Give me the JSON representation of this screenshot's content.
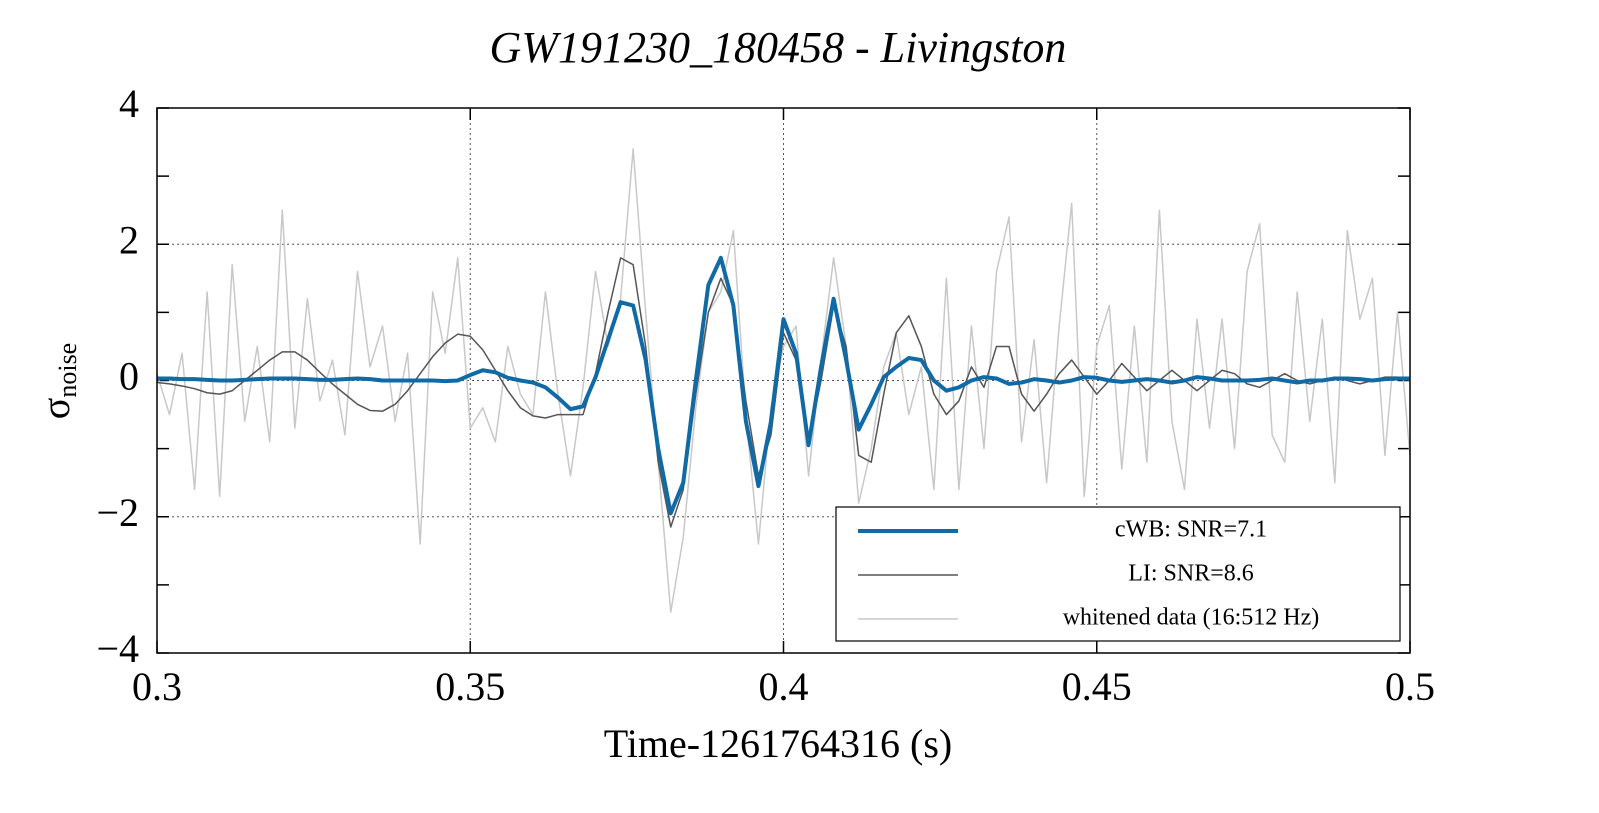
{
  "chart_data": {
    "type": "line",
    "title": "GW191230_180458 - Livingston",
    "xlabel": "Time-1261764316 (s)",
    "ylabel": "σ",
    "ylabel_subscript": "noise",
    "xlim": [
      0.3,
      0.5
    ],
    "xticks": [
      0.3,
      0.35,
      0.4,
      0.45,
      0.5
    ],
    "ylim": [
      -4,
      4
    ],
    "yticks": [
      {
        "value": -4,
        "label": "−4"
      },
      {
        "value": -2,
        "label": "−2"
      },
      0,
      2,
      4
    ],
    "yminorticks": [
      -3,
      -1,
      1,
      3
    ],
    "grid": true,
    "legend": "lower right",
    "x": [
      0.3,
      0.302,
      0.304,
      0.306,
      0.308,
      0.31,
      0.312,
      0.314,
      0.316,
      0.318,
      0.32,
      0.322,
      0.324,
      0.326,
      0.328,
      0.33,
      0.332,
      0.334,
      0.336,
      0.338,
      0.34,
      0.342,
      0.344,
      0.346,
      0.348,
      0.35,
      0.352,
      0.354,
      0.356,
      0.358,
      0.36,
      0.362,
      0.364,
      0.366,
      0.368,
      0.37,
      0.372,
      0.374,
      0.376,
      0.378,
      0.38,
      0.382,
      0.384,
      0.386,
      0.388,
      0.39,
      0.392,
      0.394,
      0.396,
      0.398,
      0.4,
      0.402,
      0.404,
      0.406,
      0.408,
      0.41,
      0.412,
      0.414,
      0.416,
      0.418,
      0.42,
      0.422,
      0.424,
      0.426,
      0.428,
      0.43,
      0.432,
      0.434,
      0.436,
      0.438,
      0.44,
      0.442,
      0.444,
      0.446,
      0.448,
      0.45,
      0.452,
      0.454,
      0.456,
      0.458,
      0.46,
      0.462,
      0.464,
      0.466,
      0.468,
      0.47,
      0.472,
      0.474,
      0.476,
      0.478,
      0.48,
      0.482,
      0.484,
      0.486,
      0.488,
      0.49,
      0.492,
      0.494,
      0.496,
      0.498,
      0.5
    ],
    "series": [
      {
        "name": "whitened data (16:512 Hz)",
        "color": "#c8c8c8",
        "width": 1.5,
        "values": [
          0.1,
          -0.5,
          0.4,
          -1.6,
          1.3,
          -1.7,
          1.7,
          -0.6,
          0.5,
          -0.9,
          2.5,
          -0.7,
          1.2,
          -0.3,
          0.3,
          -0.8,
          1.6,
          0.2,
          0.8,
          -0.6,
          0.4,
          -2.4,
          1.3,
          0.4,
          1.8,
          -0.7,
          -0.4,
          -0.9,
          0.5,
          -0.2,
          -0.5,
          1.3,
          -0.2,
          -1.4,
          -0.1,
          1.6,
          0.5,
          1.2,
          3.4,
          1.0,
          -1.2,
          -3.4,
          -2.3,
          -0.4,
          1.0,
          1.3,
          2.2,
          -0.5,
          -2.4,
          -0.4,
          0.5,
          0.8,
          -1.4,
          0.3,
          1.8,
          0.5,
          -1.8,
          -1.0,
          0.2,
          0.7,
          -0.5,
          0.2,
          -1.6,
          1.5,
          -1.6,
          0.8,
          -1.0,
          1.6,
          2.4,
          -0.9,
          0.6,
          -1.5,
          0.8,
          2.6,
          -1.7,
          0.5,
          1.1,
          -1.3,
          0.8,
          -1.2,
          2.5,
          -0.6,
          -1.6,
          0.9,
          -0.7,
          0.9,
          -1.0,
          1.6,
          2.3,
          -0.8,
          -1.2,
          1.3,
          -0.6,
          0.9,
          -1.5,
          2.2,
          0.9,
          1.5,
          -1.1,
          1.0,
          -1.1
        ]
      },
      {
        "name": "LI: SNR=8.6",
        "color": "#555555",
        "width": 1.5,
        "values": [
          -0.03,
          -0.05,
          -0.08,
          -0.12,
          -0.18,
          -0.2,
          -0.15,
          0.0,
          0.15,
          0.3,
          0.42,
          0.42,
          0.3,
          0.12,
          -0.05,
          -0.2,
          -0.35,
          -0.44,
          -0.45,
          -0.35,
          -0.15,
          0.1,
          0.35,
          0.55,
          0.68,
          0.65,
          0.45,
          0.15,
          -0.15,
          -0.4,
          -0.52,
          -0.55,
          -0.5,
          -0.5,
          -0.5,
          0.1,
          1.0,
          1.8,
          1.7,
          0.5,
          -1.2,
          -2.15,
          -1.6,
          -0.2,
          1.0,
          1.5,
          1.1,
          -0.3,
          -1.4,
          -0.8,
          0.7,
          0.3,
          -0.9,
          0.0,
          1.1,
          0.5,
          -1.1,
          -1.2,
          -0.2,
          0.7,
          0.95,
          0.5,
          -0.2,
          -0.5,
          -0.3,
          0.2,
          -0.1,
          0.5,
          0.5,
          -0.2,
          -0.45,
          -0.2,
          0.1,
          0.3,
          0.05,
          -0.2,
          0.0,
          0.25,
          0.05,
          -0.15,
          0.0,
          0.15,
          0.0,
          -0.15,
          0.0,
          0.15,
          0.1,
          -0.05,
          -0.1,
          0.0,
          0.1,
          0.0,
          -0.05,
          0.0,
          0.05,
          0.0,
          -0.05,
          0.0,
          0.05,
          0.05,
          0.0
        ]
      },
      {
        "name": "cWB: SNR=7.1",
        "color": "#0f6aa6",
        "width": 4,
        "values": [
          0.03,
          0.03,
          0.02,
          0.02,
          0.01,
          0.0,
          0.0,
          0.01,
          0.02,
          0.03,
          0.03,
          0.03,
          0.02,
          0.01,
          0.01,
          0.02,
          0.03,
          0.02,
          0.0,
          0.0,
          0.0,
          0.0,
          0.0,
          -0.01,
          0.0,
          0.08,
          0.15,
          0.12,
          0.04,
          0.0,
          -0.03,
          -0.1,
          -0.25,
          -0.42,
          -0.38,
          0.05,
          0.6,
          1.15,
          1.1,
          0.3,
          -1.0,
          -1.95,
          -1.5,
          0.0,
          1.4,
          1.8,
          1.1,
          -0.6,
          -1.55,
          -0.6,
          0.9,
          0.4,
          -0.95,
          0.2,
          1.2,
          0.3,
          -0.72,
          -0.35,
          0.05,
          0.2,
          0.33,
          0.3,
          0.0,
          -0.15,
          -0.1,
          0.0,
          0.05,
          0.03,
          -0.05,
          -0.03,
          0.02,
          0.0,
          -0.03,
          0.0,
          0.05,
          0.04,
          0.0,
          -0.02,
          0.0,
          0.02,
          0.0,
          -0.03,
          0.0,
          0.05,
          0.03,
          0.0,
          0.0,
          0.0,
          0.01,
          0.03,
          0.0,
          -0.03,
          0.0,
          0.0,
          0.03,
          0.03,
          0.02,
          0.0,
          0.02,
          0.03,
          0.03
        ]
      }
    ]
  }
}
